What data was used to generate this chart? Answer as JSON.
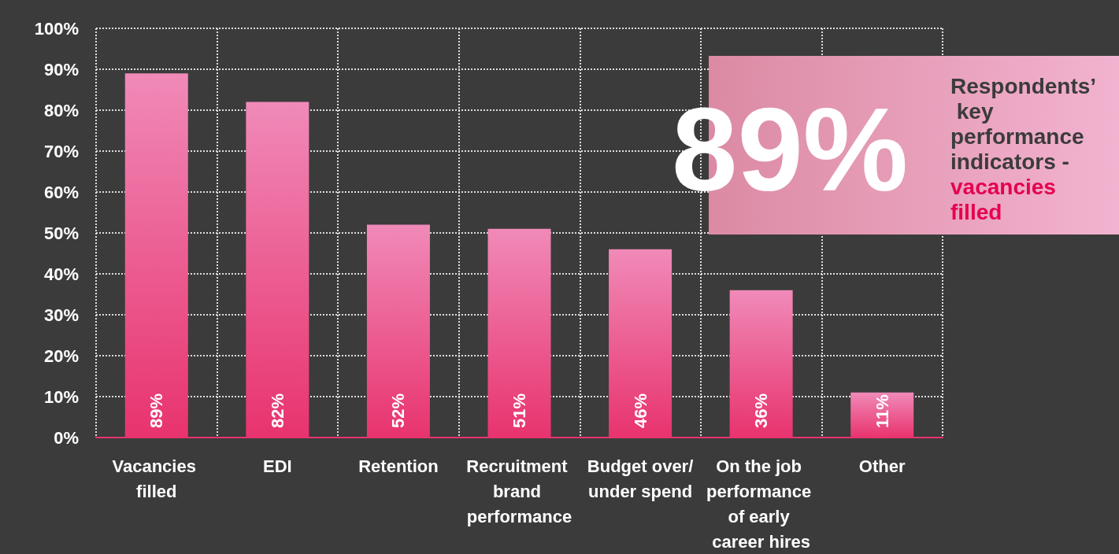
{
  "chart_data": {
    "type": "bar",
    "categories": [
      "Vacancies filled",
      "EDI",
      "Retention",
      "Recruitment brand performance",
      "Budget over/under spend",
      "On the job performance of early career hires",
      "Other"
    ],
    "values": [
      89,
      82,
      52,
      51,
      46,
      36,
      11
    ],
    "value_labels": [
      "89%",
      "82%",
      "52%",
      "51%",
      "46%",
      "36%",
      "11%"
    ],
    "color": "#e8336e",
    "ylim": [
      0,
      100
    ],
    "yticks": [
      {
        "value": 0,
        "label": "0%"
      },
      {
        "value": 10,
        "label": "10%"
      },
      {
        "value": 20,
        "label": "20%"
      },
      {
        "value": 30,
        "label": "30%"
      },
      {
        "value": 40,
        "label": "40%"
      },
      {
        "value": 50,
        "label": "50%"
      },
      {
        "value": 60,
        "label": "60%"
      },
      {
        "value": 70,
        "label": "70%"
      },
      {
        "value": 80,
        "label": "80%"
      },
      {
        "value": 90,
        "label": "90%"
      },
      {
        "value": 100,
        "label": "100%"
      }
    ],
    "grid": true,
    "annotations": [
      "89%",
      "Respondents’ key performance indicators -",
      "vacancies filled"
    ]
  }
}
